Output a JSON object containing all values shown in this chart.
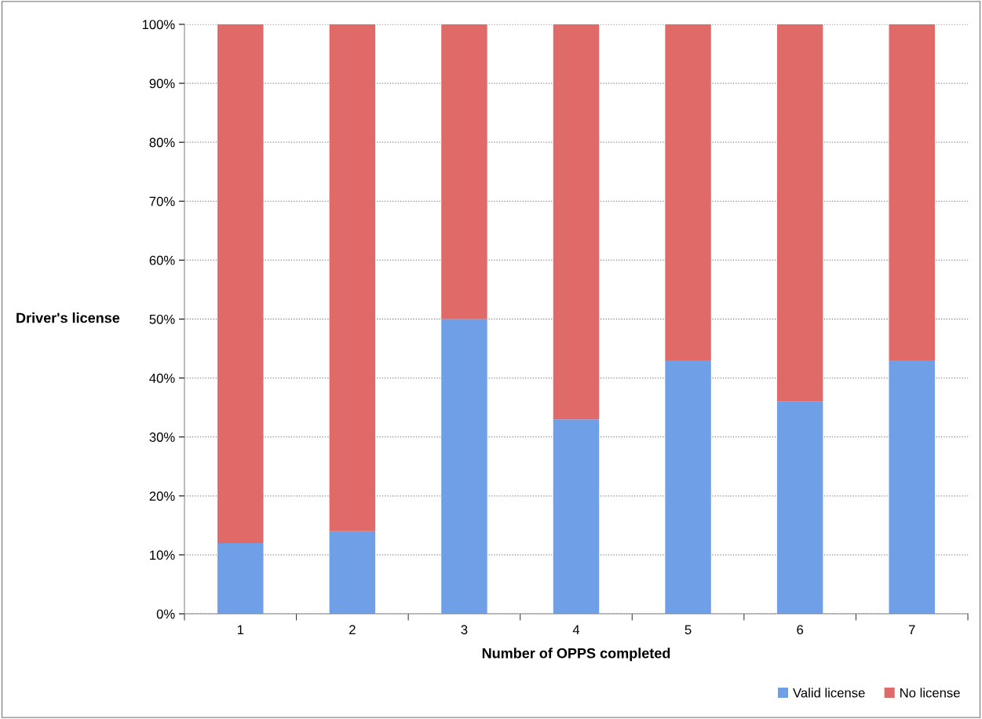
{
  "chart_data": {
    "type": "bar",
    "stacked": true,
    "xlabel": "Number of OPPS completed",
    "ylabel": "Driver's license",
    "categories": [
      "1",
      "2",
      "3",
      "4",
      "5",
      "6",
      "7"
    ],
    "series": [
      {
        "name": "Valid license",
        "color": "#6f9fe6",
        "values": [
          12,
          14,
          50,
          33,
          43,
          36,
          43
        ]
      },
      {
        "name": "No license",
        "color": "#e06a68",
        "values": [
          88,
          86,
          50,
          67,
          57,
          64,
          57
        ]
      }
    ],
    "ylim": [
      0,
      100
    ],
    "yticks": [
      {
        "value": 0,
        "label": "0%"
      },
      {
        "value": 10,
        "label": "10%"
      },
      {
        "value": 20,
        "label": "20%"
      },
      {
        "value": 30,
        "label": "30%"
      },
      {
        "value": 40,
        "label": "40%"
      },
      {
        "value": 50,
        "label": "50%"
      },
      {
        "value": 60,
        "label": "60%"
      },
      {
        "value": 70,
        "label": "70%"
      },
      {
        "value": 80,
        "label": "80%"
      },
      {
        "value": 90,
        "label": "90%"
      },
      {
        "value": 100,
        "label": "100%"
      }
    ],
    "grid": "y",
    "legend": "bottom right"
  }
}
